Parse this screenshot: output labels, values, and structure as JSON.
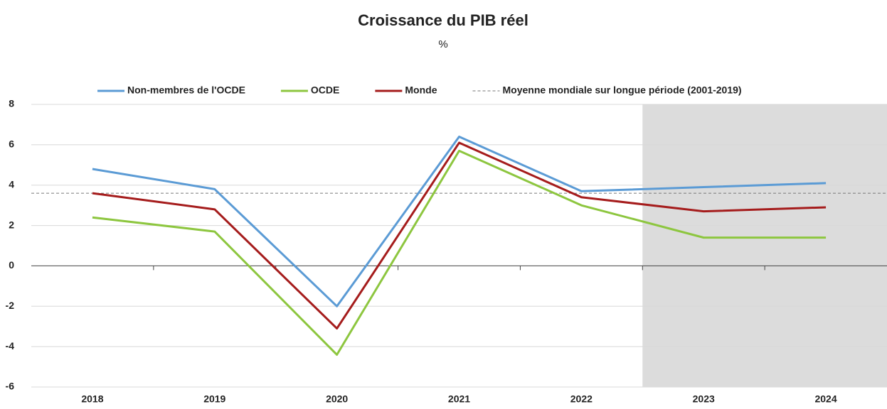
{
  "chart_data": {
    "type": "line",
    "title": "Croissance du PIB réel",
    "subtitle": "%",
    "categories": [
      "2018",
      "2019",
      "2020",
      "2021",
      "2022",
      "2023",
      "2024"
    ],
    "series": [
      {
        "name": "Non-membres de l'OCDE",
        "color": "#5b9bd5",
        "values": [
          4.8,
          3.8,
          -2.0,
          6.4,
          3.7,
          3.9,
          4.1
        ]
      },
      {
        "name": "OCDE",
        "color": "#8dc63f",
        "values": [
          2.4,
          1.7,
          -4.4,
          5.7,
          3.0,
          1.4,
          1.4
        ]
      },
      {
        "name": "Monde",
        "color": "#a51c1c",
        "values": [
          3.6,
          2.8,
          -3.1,
          6.1,
          3.4,
          2.7,
          2.9
        ]
      }
    ],
    "reference_line": {
      "name": "Moyenne mondiale sur longue période (2001-2019)",
      "value": 3.6,
      "color": "#777777"
    },
    "shade": {
      "start": 5,
      "color": "#dcdcdc"
    },
    "ylim": [
      -6,
      8
    ],
    "yticks": [
      -6,
      -4,
      -2,
      0,
      2,
      4,
      6,
      8
    ],
    "grid": true,
    "legend": "top"
  }
}
